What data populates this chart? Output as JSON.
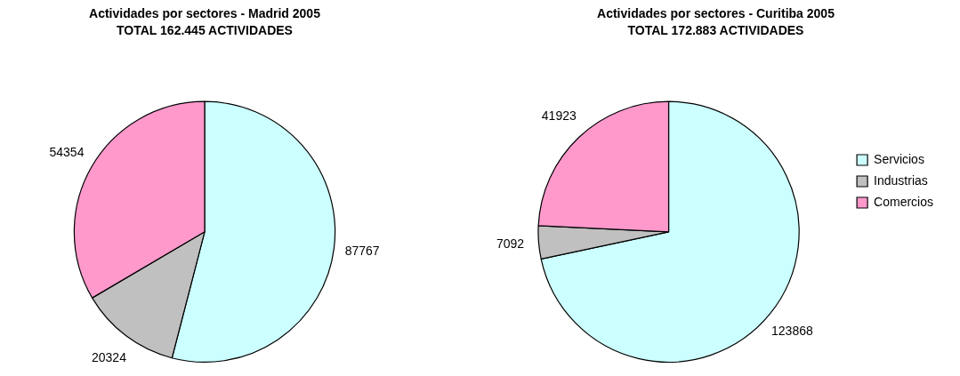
{
  "chart_data": [
    {
      "type": "pie",
      "title": "Actividades por sectores - Madrid 2005",
      "subtitle": "TOTAL 162.445 ACTIVIDADES",
      "categories": [
        null,
        null,
        null
      ],
      "values": [
        87767,
        20324,
        54354
      ],
      "colors": [
        "#ccffff",
        "#c0c0c0",
        "#ff99cc"
      ],
      "data_labels": true,
      "legend": false
    },
    {
      "type": "pie",
      "title": "Actividades por sectores - Curitiba 2005",
      "subtitle": "TOTAL 172.883 ACTIVIDADES",
      "categories": [
        "Servicios",
        "Industrias",
        "Comercios"
      ],
      "values": [
        123868,
        7092,
        41923
      ],
      "colors": [
        "#ccffff",
        "#c0c0c0",
        "#ff99cc"
      ],
      "data_labels": true,
      "legend": "right"
    }
  ]
}
